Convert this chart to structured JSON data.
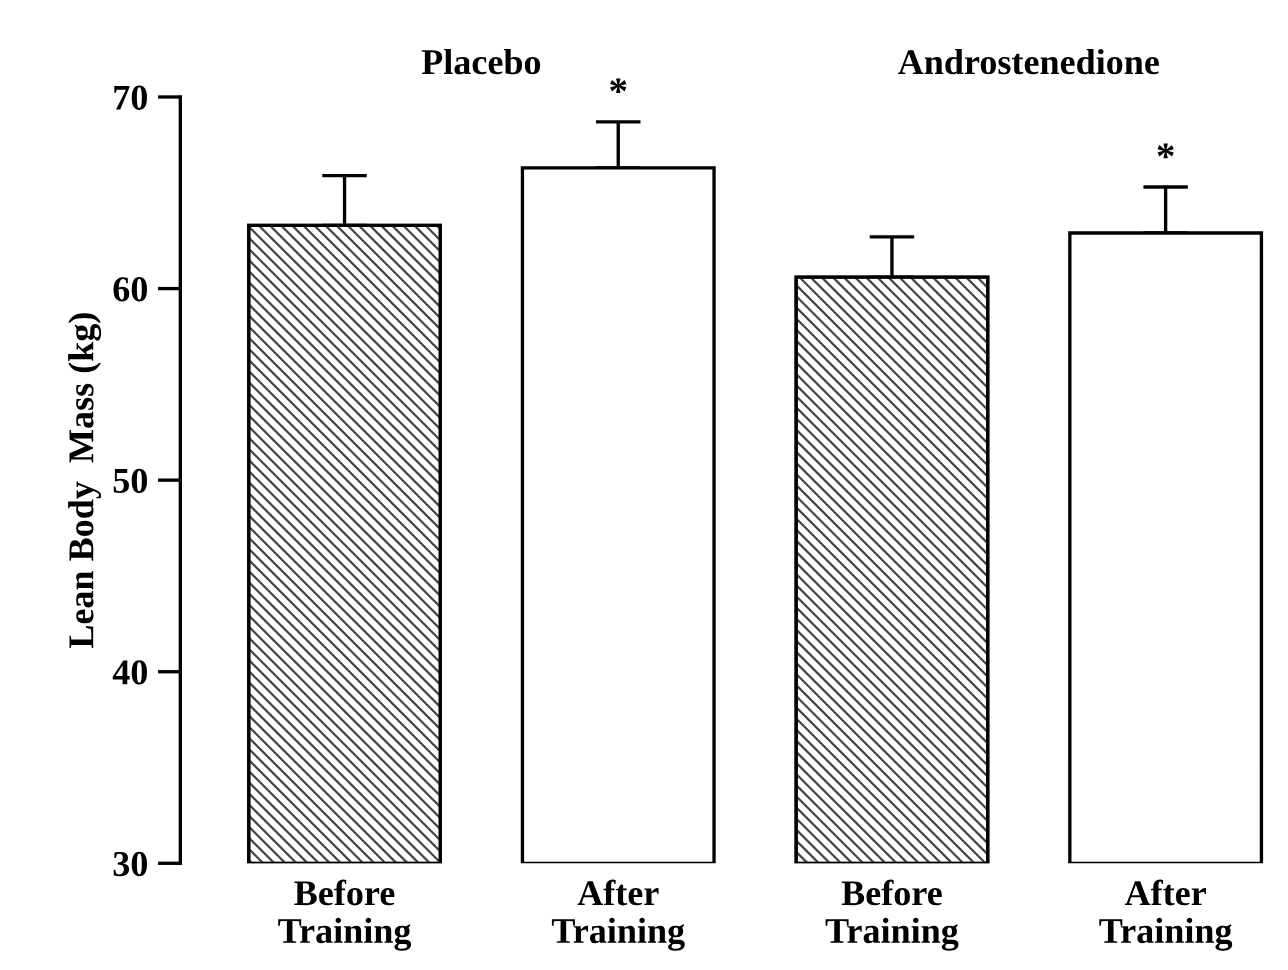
{
  "chart_data": {
    "type": "bar",
    "ylabel": "Lean Body  Mass (kg)",
    "categories": [
      "Before\nTraining",
      "After\nTraining",
      "Before\nTraining",
      "After\nTraining"
    ],
    "values": [
      63.3,
      66.3,
      60.6,
      62.9
    ],
    "colors": [
      "#444444",
      "#ffffff",
      "#444444",
      "#ffffff"
    ],
    "errors": [
      [
        63.3,
        65.9
      ],
      [
        66.3,
        68.7
      ],
      [
        60.6,
        62.7
      ],
      [
        62.9,
        65.3
      ]
    ],
    "ylim": [
      30,
      70
    ],
    "yticks": [
      30,
      40,
      50,
      60,
      70
    ],
    "grid": false,
    "legend": false,
    "annotations": [
      "Placebo",
      "Androstenedione",
      "*",
      "*"
    ]
  }
}
